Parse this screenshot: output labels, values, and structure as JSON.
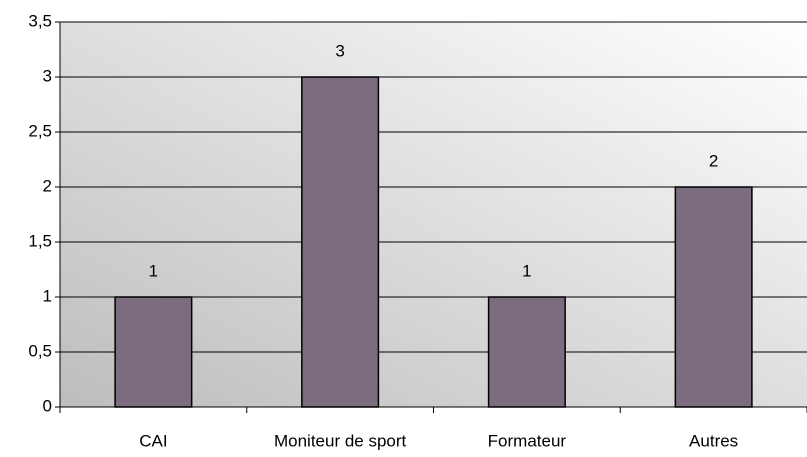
{
  "chart_data": {
    "type": "bar",
    "categories": [
      "CAI",
      "Moniteur de sport",
      "Formateur",
      "Autres"
    ],
    "values": [
      1,
      3,
      1,
      2
    ],
    "color": "#7b6c80",
    "ylim": [
      0,
      3.5
    ],
    "yticks": [
      0,
      {
        "value": 0.5,
        "label": "0,5"
      },
      1,
      {
        "value": 1.5,
        "label": "1,5"
      },
      2,
      {
        "value": 2.5,
        "label": "2,5"
      },
      3,
      {
        "value": 3.5,
        "label": "3,5"
      }
    ],
    "grid": true
  }
}
